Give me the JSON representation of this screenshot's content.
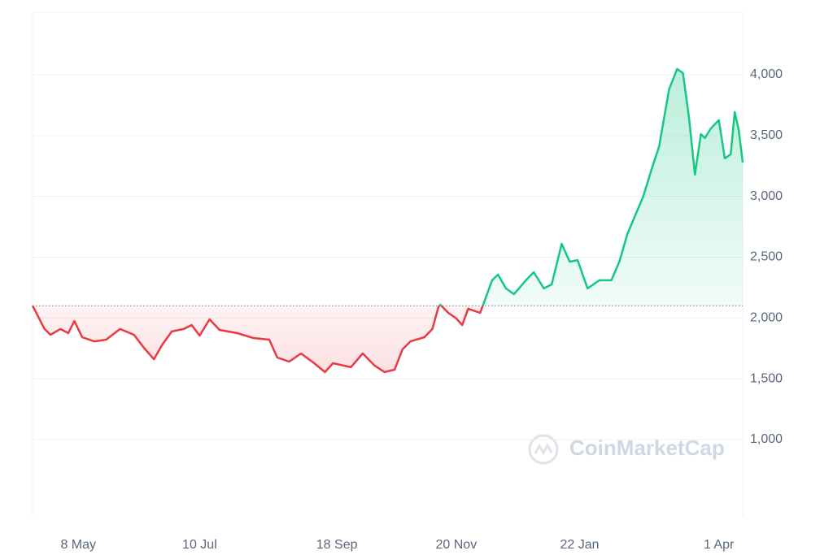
{
  "chart_data": {
    "type": "area-line",
    "watermark": "CoinMarketCap",
    "baseline": 2100,
    "up_color": "#16c784",
    "down_color": "#ea3943",
    "x": [
      0,
      6,
      9,
      14,
      18,
      21,
      25,
      31,
      37,
      44,
      51,
      56,
      61,
      65,
      70,
      76,
      80,
      84,
      89,
      94,
      103,
      111,
      119,
      123,
      129,
      135,
      141,
      147,
      151,
      160,
      166,
      172,
      177,
      182,
      186,
      190,
      197,
      201,
      204,
      205,
      209,
      213,
      216,
      219,
      225,
      227,
      231,
      234,
      238,
      242,
      248,
      252,
      257,
      261,
      266,
      270,
      274,
      279,
      285,
      291,
      295,
      299,
      303,
      307,
      311,
      315,
      320,
      324,
      327,
      330,
      333,
      336,
      338,
      341,
      345,
      348,
      351,
      353,
      355,
      357
    ],
    "values": [
      2102,
      1910,
      1862,
      1909,
      1875,
      1975,
      1842,
      1808,
      1822,
      1909,
      1862,
      1755,
      1661,
      1775,
      1889,
      1909,
      1942,
      1855,
      1989,
      1902,
      1875,
      1835,
      1822,
      1675,
      1641,
      1708,
      1635,
      1555,
      1628,
      1595,
      1708,
      1608,
      1555,
      1575,
      1742,
      1808,
      1842,
      1909,
      2089,
      2109,
      2042,
      1996,
      1942,
      2076,
      2042,
      2129,
      2310,
      2356,
      2243,
      2196,
      2310,
      2376,
      2243,
      2276,
      2610,
      2463,
      2476,
      2243,
      2310,
      2310,
      2463,
      2690,
      2844,
      2998,
      3212,
      3412,
      3880,
      4047,
      4013,
      3646,
      3178,
      3512,
      3479,
      3559,
      3626,
      3312,
      3346,
      3693,
      3546,
      3278
    ],
    "xlim": [
      0,
      357
    ],
    "xticks": [
      {
        "value": 23,
        "label": "8 May"
      },
      {
        "value": 84,
        "label": "10 Jul"
      },
      {
        "value": 153,
        "label": "18 Sep"
      },
      {
        "value": 213,
        "label": "20 Nov"
      },
      {
        "value": 275,
        "label": "22 Jan"
      },
      {
        "value": 345,
        "label": "1 Apr"
      }
    ],
    "ylim": [
      372,
      4514
    ],
    "yticks": [
      {
        "value": 1000,
        "label": "1,000"
      },
      {
        "value": 1500,
        "label": "1,500"
      },
      {
        "value": 2000,
        "label": "2,000"
      },
      {
        "value": 2500,
        "label": "2,500"
      },
      {
        "value": 3000,
        "label": "3,000"
      },
      {
        "value": 3500,
        "label": "3,500"
      },
      {
        "value": 4000,
        "label": "4,000"
      }
    ],
    "grid": true
  }
}
